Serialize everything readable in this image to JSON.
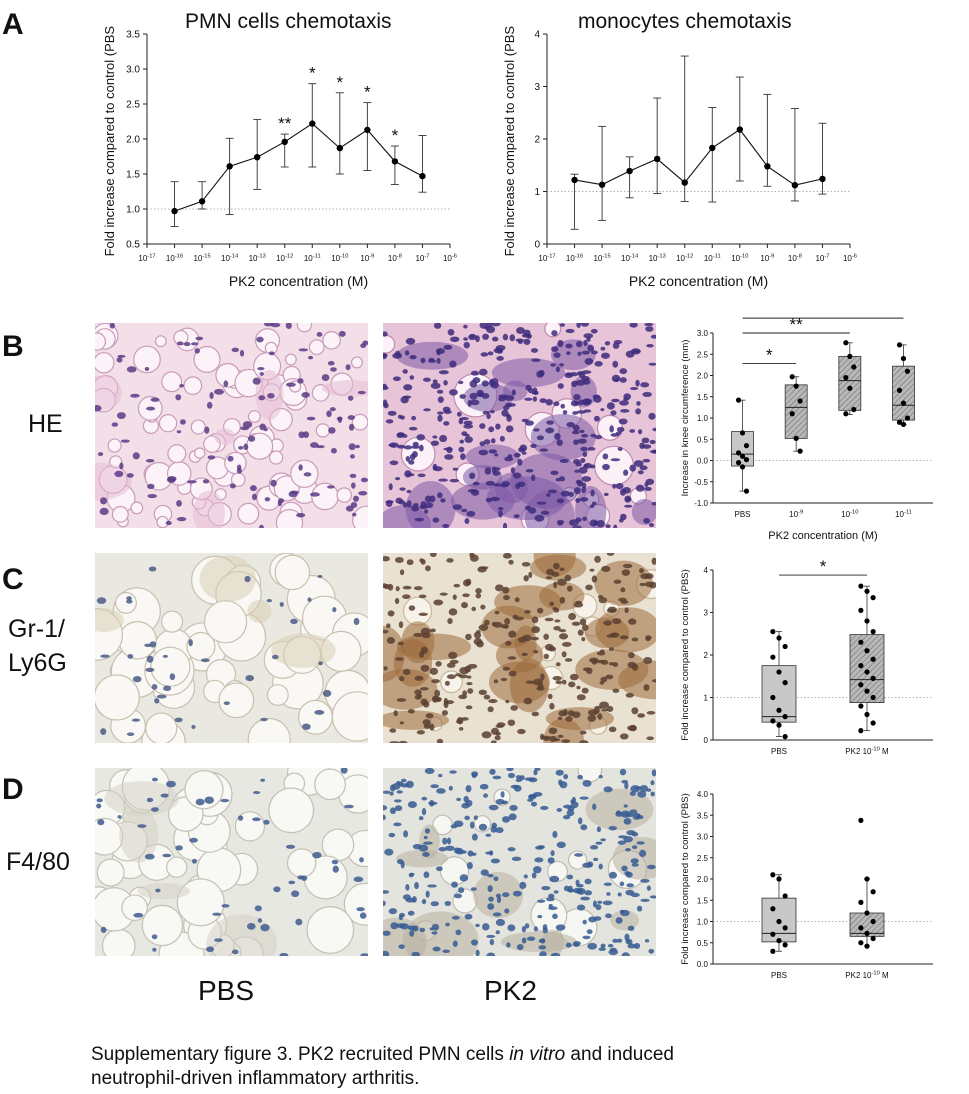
{
  "panels": {
    "A": "A",
    "B": "B",
    "C": "C",
    "D": "D"
  },
  "row_labels": {
    "he": "HE",
    "gr1_line1": "Gr-1/",
    "gr1_line2": "Ly6G",
    "f480": "F4/80"
  },
  "column_labels": {
    "pbs": "PBS",
    "pk2": "PK2"
  },
  "caption": {
    "line1": "Supplementary figure 3.  PK2 recruited PMN cells ",
    "italic": "in vitro",
    "line1_end": " and induced",
    "line2": "neutrophil-driven inflammatory arthritis."
  },
  "chart_data": [
    {
      "id": "pmn",
      "type": "line",
      "title": "PMN cells chemotaxis",
      "xlabel": "PK2 concentration (M)",
      "ylabel": "Fold increase compared to control (PBS)",
      "x_exponents": [
        -17,
        -16,
        -15,
        -14,
        -13,
        -12,
        -11,
        -10,
        -9,
        -8,
        -7,
        -6
      ],
      "x_scale": "log",
      "ylim": [
        0.5,
        3.5
      ],
      "yticks": [
        "0.5",
        "1.0",
        "1.5",
        "2.0",
        "2.5",
        "3.0",
        "3.5"
      ],
      "reference_line": 1.0,
      "points": [
        {
          "x": -16,
          "y": 0.97,
          "lo": 0.75,
          "hi": 1.39,
          "sig": ""
        },
        {
          "x": -15,
          "y": 1.11,
          "lo": 1.0,
          "hi": 1.39,
          "sig": ""
        },
        {
          "x": -14,
          "y": 1.61,
          "lo": 0.92,
          "hi": 2.01,
          "sig": ""
        },
        {
          "x": -13,
          "y": 1.74,
          "lo": 1.28,
          "hi": 2.28,
          "sig": ""
        },
        {
          "x": -12,
          "y": 1.96,
          "lo": 1.6,
          "hi": 2.07,
          "sig": "**"
        },
        {
          "x": -11,
          "y": 2.22,
          "lo": 1.6,
          "hi": 2.79,
          "sig": "*"
        },
        {
          "x": -10,
          "y": 1.87,
          "lo": 1.5,
          "hi": 2.66,
          "sig": "*"
        },
        {
          "x": -9,
          "y": 2.13,
          "lo": 1.55,
          "hi": 2.52,
          "sig": "*"
        },
        {
          "x": -8,
          "y": 1.68,
          "lo": 1.35,
          "hi": 1.9,
          "sig": "*"
        },
        {
          "x": -7,
          "y": 1.47,
          "lo": 1.24,
          "hi": 2.05,
          "sig": ""
        }
      ]
    },
    {
      "id": "mono",
      "type": "line",
      "title": "monocytes chemotaxis",
      "xlabel": "PK2 concentration (M)",
      "ylabel": "Fold increase compared to control (PBS)",
      "x_exponents": [
        -17,
        -16,
        -15,
        -14,
        -13,
        -12,
        -11,
        -10,
        -9,
        -8,
        -7,
        -6
      ],
      "x_scale": "log",
      "ylim": [
        0,
        4
      ],
      "yticks": [
        "0",
        "1",
        "2",
        "3",
        "4"
      ],
      "reference_line": 1.0,
      "points": [
        {
          "x": -16,
          "y": 1.22,
          "lo": 0.28,
          "hi": 1.33
        },
        {
          "x": -15,
          "y": 1.13,
          "lo": 0.45,
          "hi": 2.24
        },
        {
          "x": -14,
          "y": 1.39,
          "lo": 0.88,
          "hi": 1.66
        },
        {
          "x": -13,
          "y": 1.62,
          "lo": 0.96,
          "hi": 2.78
        },
        {
          "x": -12,
          "y": 1.17,
          "lo": 0.81,
          "hi": 3.58
        },
        {
          "x": -11,
          "y": 1.83,
          "lo": 0.8,
          "hi": 2.6
        },
        {
          "x": -10,
          "y": 2.18,
          "lo": 1.2,
          "hi": 3.18
        },
        {
          "x": -9,
          "y": 1.48,
          "lo": 1.1,
          "hi": 2.85
        },
        {
          "x": -8,
          "y": 1.12,
          "lo": 0.82,
          "hi": 2.58
        },
        {
          "x": -7,
          "y": 1.24,
          "lo": 0.95,
          "hi": 2.3
        }
      ]
    },
    {
      "id": "knee",
      "type": "box",
      "xlabel": "PK2 concentration (M)",
      "ylabel": "Increase in knee circumference (mm)",
      "ylim": [
        -1.0,
        3.0
      ],
      "yticks": [
        "-1.0",
        "-0.5",
        "0.0",
        "0.5",
        "1.0",
        "1.5",
        "2.0",
        "2.5",
        "3.0"
      ],
      "reference_line": 0,
      "groups": [
        {
          "label": "PBS",
          "exp": "",
          "q1": -0.13,
          "median": 0.15,
          "q3": 0.68,
          "wlo": -0.72,
          "whi": 1.42,
          "fill": "#c8c8c8",
          "hatch": false,
          "points": [
            1.42,
            0.65,
            0.35,
            0.18,
            0.1,
            0.02,
            -0.05,
            -0.15,
            -0.72
          ]
        },
        {
          "label": "10",
          "exp": "-9",
          "q1": 0.52,
          "median": 1.25,
          "q3": 1.78,
          "wlo": 0.22,
          "whi": 1.97,
          "fill": "#c8c8c8",
          "hatch": true,
          "points": [
            1.97,
            1.75,
            1.4,
            1.1,
            0.52,
            0.22
          ]
        },
        {
          "label": "10",
          "exp": "-10",
          "q1": 1.18,
          "median": 1.88,
          "q3": 2.45,
          "wlo": 1.08,
          "whi": 2.77,
          "fill": "#c8c8c8",
          "hatch": true,
          "points": [
            2.77,
            2.45,
            2.2,
            1.95,
            1.7,
            1.2,
            1.1
          ]
        },
        {
          "label": "10",
          "exp": "-11",
          "q1": 0.95,
          "median": 1.3,
          "q3": 2.22,
          "wlo": 0.85,
          "whi": 2.72,
          "fill": "#c8c8c8",
          "hatch": true,
          "points": [
            2.72,
            2.4,
            2.1,
            1.65,
            1.35,
            1.0,
            0.9,
            0.85
          ]
        }
      ],
      "significance": [
        {
          "from": 0,
          "to": 1,
          "label": "*",
          "level": 2.28
        },
        {
          "from": 0,
          "to": 2,
          "label": "**",
          "level": 3.0
        },
        {
          "from": 0,
          "to": 3,
          "label": "**",
          "level": 3.35
        }
      ]
    },
    {
      "id": "gr1",
      "type": "box",
      "ylabel": "Fold increase compared to control (PBS)",
      "ylim": [
        0,
        4
      ],
      "yticks": [
        "0",
        "1",
        "2",
        "3",
        "4"
      ],
      "reference_line": 1,
      "groups": [
        {
          "label": "PBS",
          "exp": "",
          "q1": 0.42,
          "median": 0.55,
          "q3": 1.75,
          "wlo": 0.08,
          "whi": 2.55,
          "fill": "#c8c8c8",
          "hatch": false,
          "points": [
            2.55,
            2.4,
            2.2,
            1.95,
            1.6,
            1.35,
            1.0,
            0.7,
            0.55,
            0.45,
            0.35,
            0.08
          ]
        },
        {
          "label": "PK2 10",
          "exp": "-10",
          "unit": " M",
          "q1": 0.88,
          "median": 1.42,
          "q3": 2.48,
          "wlo": 0.22,
          "whi": 3.62,
          "fill": "#c8c8c8",
          "hatch": true,
          "points": [
            3.62,
            3.5,
            3.35,
            3.05,
            2.8,
            2.55,
            2.3,
            2.1,
            1.9,
            1.75,
            1.6,
            1.45,
            1.3,
            1.15,
            1.0,
            0.8,
            0.6,
            0.4,
            0.22
          ]
        }
      ],
      "significance": [
        {
          "from": 0,
          "to": 1,
          "label": "*",
          "level": 3.88
        }
      ]
    },
    {
      "id": "f480",
      "type": "box",
      "ylabel": "Fold increase compared to control (PBS)",
      "ylim": [
        0,
        4
      ],
      "yticks": [
        "0.0",
        "0.5",
        "1.0",
        "1.5",
        "2.0",
        "2.5",
        "3.0",
        "3.5",
        "4.0"
      ],
      "reference_line": 1,
      "groups": [
        {
          "label": "PBS",
          "exp": "",
          "q1": 0.52,
          "median": 0.72,
          "q3": 1.55,
          "wlo": 0.3,
          "whi": 2.1,
          "fill": "#c8c8c8",
          "hatch": false,
          "points": [
            2.1,
            2.0,
            1.6,
            1.3,
            1.0,
            0.85,
            0.7,
            0.55,
            0.45,
            0.3
          ]
        },
        {
          "label": "PK2 10",
          "exp": "-10",
          "unit": " M",
          "q1": 0.65,
          "median": 0.72,
          "q3": 1.2,
          "wlo": 0.42,
          "whi": 2.0,
          "fill": "#c8c8c8",
          "hatch": true,
          "points": [
            3.38,
            2.0,
            1.7,
            1.45,
            1.2,
            1.0,
            0.85,
            0.72,
            0.6,
            0.5,
            0.42
          ]
        }
      ],
      "significance": []
    }
  ]
}
